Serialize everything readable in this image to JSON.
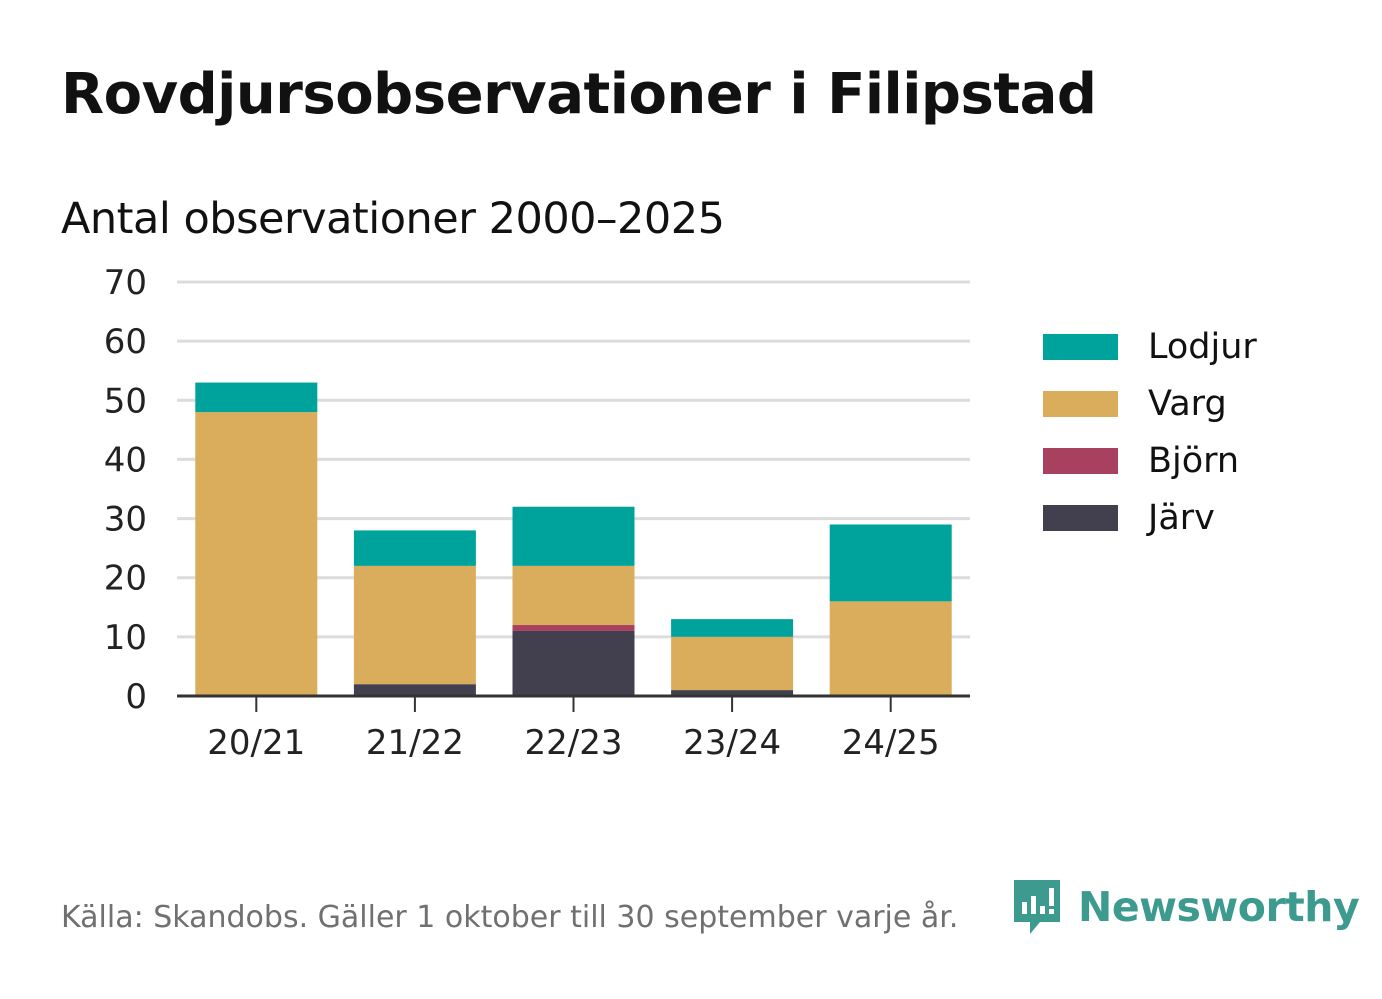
{
  "title": "Rovdjursobservationer i Filipstad",
  "subtitle": "Antal observationer 2000–2025",
  "footer": "Källa: Skandobs. Gäller 1 oktober till 30 september varje år.",
  "brand": {
    "name": "Newsworthy",
    "logo_icon": "bar-chart-speech-bubble-icon",
    "color": "#3d9a8f"
  },
  "chart_data": {
    "type": "bar",
    "stacked": true,
    "title": "Antal observationer 2000–2025",
    "xlabel": "",
    "ylabel": "",
    "ylim": [
      0,
      70
    ],
    "yticks": [
      0,
      10,
      20,
      30,
      40,
      50,
      60,
      70
    ],
    "grid": true,
    "legend_position": "right",
    "categories": [
      "20/21",
      "21/22",
      "22/23",
      "23/24",
      "24/25"
    ],
    "series": [
      {
        "name": "Järv",
        "color": "#42404f",
        "values": [
          0,
          2,
          11,
          1,
          0
        ]
      },
      {
        "name": "Björn",
        "color": "#a8405f",
        "values": [
          0,
          0,
          1,
          0,
          0
        ]
      },
      {
        "name": "Varg",
        "color": "#d9ad5b",
        "values": [
          48,
          20,
          10,
          9,
          16
        ]
      },
      {
        "name": "Lodjur",
        "color": "#00a39b",
        "values": [
          5,
          6,
          10,
          3,
          13
        ]
      }
    ],
    "legend_order": [
      "Lodjur",
      "Varg",
      "Björn",
      "Järv"
    ]
  }
}
